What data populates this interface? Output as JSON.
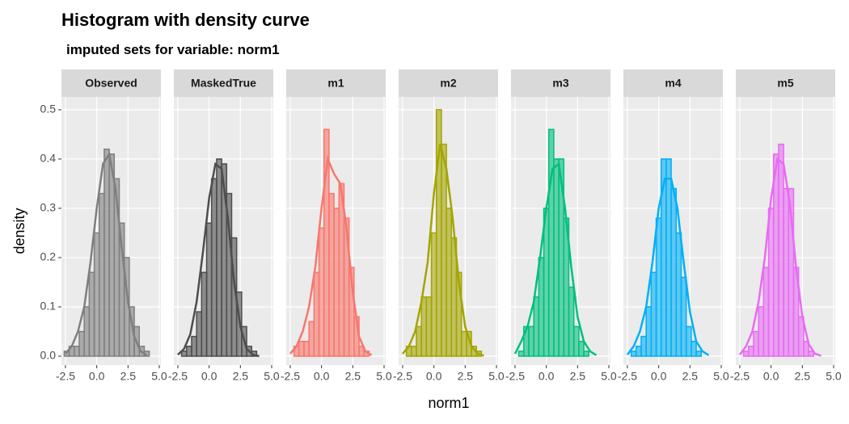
{
  "title": "Histogram with density curve",
  "subtitle": "imputed sets for variable:  norm1",
  "x_label": "norm1",
  "y_label": "density",
  "chart_data": [
    {
      "type": "histogram",
      "title": "Observed",
      "color": "#7f7f7f",
      "bins": [
        -2.6,
        -2.2,
        -1.8,
        -1.4,
        -1.0,
        -0.6,
        -0.2,
        0.2,
        0.6,
        1.0,
        1.4,
        1.8,
        2.2,
        2.6,
        3.0,
        3.4,
        3.8,
        4.2
      ],
      "values": [
        0.01,
        0.02,
        0.02,
        0.05,
        0.1,
        0.17,
        0.25,
        0.33,
        0.42,
        0.41,
        0.36,
        0.27,
        0.2,
        0.1,
        0.06,
        0.02,
        0.01
      ],
      "density": {
        "x": [
          -2.5,
          -2.0,
          -1.5,
          -1.0,
          -0.5,
          0.0,
          0.5,
          1.0,
          1.5,
          2.0,
          2.5,
          3.0,
          3.5,
          4.0
        ],
        "y": [
          0.005,
          0.02,
          0.05,
          0.1,
          0.19,
          0.3,
          0.39,
          0.41,
          0.34,
          0.22,
          0.11,
          0.04,
          0.01,
          0.002
        ]
      },
      "xlim": [
        -2.82,
        5.13
      ],
      "ylim": [
        -0.018,
        0.526
      ],
      "xticks": [
        -2.5,
        {
          "value": 0,
          "label": "0.0"
        },
        2.5,
        {
          "value": 5,
          "label": "5.0"
        }
      ],
      "yticks": [
        {
          "value": 0,
          "label": "0.0"
        },
        0.1,
        0.2,
        0.3,
        0.4,
        0.5
      ],
      "grid": true
    },
    {
      "type": "histogram",
      "title": "MaskedTrue",
      "color": "#4d4d4d",
      "bins": [
        -2.6,
        -2.2,
        -1.8,
        -1.4,
        -1.0,
        -0.6,
        -0.2,
        0.2,
        0.6,
        1.0,
        1.4,
        1.8,
        2.2,
        2.6,
        3.0,
        3.4,
        3.8,
        4.2
      ],
      "values": [
        0.0,
        0.01,
        0.02,
        0.04,
        0.09,
        0.17,
        0.27,
        0.36,
        0.4,
        0.39,
        0.33,
        0.24,
        0.13,
        0.06,
        0.02,
        0.01,
        0.0
      ],
      "density": {
        "x": [
          -2.5,
          -2.0,
          -1.5,
          -1.0,
          -0.5,
          0.0,
          0.5,
          1.0,
          1.5,
          2.0,
          2.5,
          3.0,
          3.5,
          4.0
        ],
        "y": [
          0.003,
          0.015,
          0.045,
          0.11,
          0.21,
          0.32,
          0.39,
          0.38,
          0.28,
          0.15,
          0.06,
          0.015,
          0.003,
          0.0
        ]
      },
      "xlim": [
        -2.82,
        5.13
      ],
      "ylim": [
        -0.018,
        0.526
      ],
      "xticks": [
        -2.5,
        {
          "value": 0,
          "label": "0.0"
        },
        2.5,
        {
          "value": 5,
          "label": "5.0"
        }
      ],
      "yticks": [
        {
          "value": 0,
          "label": "0.0"
        },
        0.1,
        0.2,
        0.3,
        0.4,
        0.5
      ],
      "grid": true
    },
    {
      "type": "histogram",
      "title": "m1",
      "color": "#F8766D",
      "bins": [
        -2.6,
        -2.2,
        -1.8,
        -1.4,
        -1.0,
        -0.6,
        -0.2,
        0.2,
        0.6,
        1.0,
        1.4,
        1.8,
        2.2,
        2.6,
        3.0,
        3.4,
        3.8,
        4.2
      ],
      "values": [
        0.0,
        0.02,
        0.03,
        0.03,
        0.07,
        0.17,
        0.26,
        0.46,
        0.33,
        0.3,
        0.35,
        0.28,
        0.18,
        0.08,
        0.02,
        0.01,
        0.0
      ],
      "density": {
        "x": [
          -2.5,
          -2.0,
          -1.5,
          -1.0,
          -0.5,
          0.0,
          0.5,
          1.0,
          1.5,
          2.0,
          2.5,
          3.0,
          3.5,
          4.0
        ],
        "y": [
          0.005,
          0.02,
          0.05,
          0.1,
          0.18,
          0.3,
          0.4,
          0.37,
          0.35,
          0.26,
          0.13,
          0.04,
          0.01,
          0.002
        ]
      },
      "xlim": [
        -2.82,
        5.13
      ],
      "ylim": [
        -0.018,
        0.526
      ],
      "xticks": [
        -2.5,
        {
          "value": 0,
          "label": "0.0"
        },
        2.5,
        {
          "value": 5,
          "label": "5.0"
        }
      ],
      "yticks": [
        {
          "value": 0,
          "label": "0.0"
        },
        0.1,
        0.2,
        0.3,
        0.4,
        0.5
      ],
      "grid": true
    },
    {
      "type": "histogram",
      "title": "m2",
      "color": "#A3A500",
      "bins": [
        -2.6,
        -2.2,
        -1.8,
        -1.4,
        -1.0,
        -0.6,
        -0.2,
        0.2,
        0.6,
        1.0,
        1.4,
        1.8,
        2.2,
        2.6,
        3.0,
        3.4,
        3.8,
        4.2
      ],
      "values": [
        0.0,
        0.02,
        0.02,
        0.06,
        0.12,
        0.12,
        0.25,
        0.5,
        0.43,
        0.3,
        0.24,
        0.17,
        0.05,
        0.05,
        0.02,
        0.01,
        0.0
      ],
      "density": {
        "x": [
          -2.5,
          -2.0,
          -1.5,
          -1.0,
          -0.5,
          0.0,
          0.5,
          1.0,
          1.5,
          2.0,
          2.5,
          3.0,
          3.5,
          4.0
        ],
        "y": [
          0.005,
          0.02,
          0.05,
          0.11,
          0.19,
          0.33,
          0.43,
          0.38,
          0.28,
          0.15,
          0.06,
          0.02,
          0.005,
          0.001
        ]
      },
      "xlim": [
        -2.82,
        5.13
      ],
      "ylim": [
        -0.018,
        0.526
      ],
      "xticks": [
        -2.5,
        {
          "value": 0,
          "label": "0.0"
        },
        2.5,
        {
          "value": 5,
          "label": "5.0"
        }
      ],
      "yticks": [
        {
          "value": 0,
          "label": "0.0"
        },
        0.1,
        0.2,
        0.3,
        0.4,
        0.5
      ],
      "grid": true
    },
    {
      "type": "histogram",
      "title": "m3",
      "color": "#00BF7D",
      "bins": [
        -2.6,
        -2.2,
        -1.8,
        -1.4,
        -1.0,
        -0.6,
        -0.2,
        0.2,
        0.6,
        1.0,
        1.4,
        1.8,
        2.2,
        2.6,
        3.0,
        3.4,
        3.8,
        4.2
      ],
      "values": [
        0.0,
        0.01,
        0.06,
        0.06,
        0.12,
        0.2,
        0.3,
        0.46,
        0.4,
        0.4,
        0.28,
        0.14,
        0.06,
        0.03,
        0.01,
        0.0,
        0.0
      ],
      "density": {
        "x": [
          -2.5,
          -2.0,
          -1.5,
          -1.0,
          -0.5,
          0.0,
          0.5,
          1.0,
          1.5,
          2.0,
          2.5,
          3.0,
          3.5,
          4.0
        ],
        "y": [
          0.005,
          0.03,
          0.06,
          0.11,
          0.2,
          0.3,
          0.38,
          0.39,
          0.3,
          0.18,
          0.08,
          0.03,
          0.01,
          0.002
        ]
      },
      "xlim": [
        -2.82,
        5.13
      ],
      "ylim": [
        -0.018,
        0.526
      ],
      "xticks": [
        -2.5,
        {
          "value": 0,
          "label": "0.0"
        },
        2.5,
        {
          "value": 5,
          "label": "5.0"
        }
      ],
      "yticks": [
        {
          "value": 0,
          "label": "0.0"
        },
        0.1,
        0.2,
        0.3,
        0.4,
        0.5
      ],
      "grid": true
    },
    {
      "type": "histogram",
      "title": "m4",
      "color": "#00B0F6",
      "bins": [
        -2.6,
        -2.2,
        -1.8,
        -1.4,
        -1.0,
        -0.6,
        -0.2,
        0.2,
        0.6,
        1.0,
        1.4,
        1.8,
        2.2,
        2.6,
        3.0,
        3.4,
        3.8,
        4.2
      ],
      "values": [
        0.0,
        0.01,
        0.02,
        0.04,
        0.1,
        0.17,
        0.28,
        0.4,
        0.4,
        0.34,
        0.25,
        0.16,
        0.06,
        0.03,
        0.01,
        0.0,
        0.0
      ],
      "density": {
        "x": [
          -2.5,
          -2.0,
          -1.5,
          -1.0,
          -0.5,
          0.0,
          0.5,
          1.0,
          1.5,
          2.0,
          2.5,
          3.0,
          3.5,
          4.0
        ],
        "y": [
          0.003,
          0.02,
          0.05,
          0.1,
          0.19,
          0.3,
          0.36,
          0.36,
          0.3,
          0.19,
          0.09,
          0.03,
          0.01,
          0.002
        ]
      },
      "xlim": [
        -2.82,
        5.13
      ],
      "ylim": [
        -0.018,
        0.526
      ],
      "xticks": [
        -2.5,
        {
          "value": 0,
          "label": "0.0"
        },
        2.5,
        {
          "value": 5,
          "label": "5.0"
        }
      ],
      "yticks": [
        {
          "value": 0,
          "label": "0.0"
        },
        0.1,
        0.2,
        0.3,
        0.4,
        0.5
      ],
      "grid": true
    },
    {
      "type": "histogram",
      "title": "m5",
      "color": "#E76BF3",
      "bins": [
        -2.6,
        -2.2,
        -1.8,
        -1.4,
        -1.0,
        -0.6,
        -0.2,
        0.2,
        0.6,
        1.0,
        1.4,
        1.8,
        2.2,
        2.6,
        3.0,
        3.4,
        3.8,
        4.2
      ],
      "values": [
        0.0,
        0.01,
        0.02,
        0.05,
        0.1,
        0.18,
        0.3,
        0.41,
        0.43,
        0.34,
        0.34,
        0.18,
        0.08,
        0.03,
        0.01,
        0.0,
        0.0
      ],
      "density": {
        "x": [
          -2.5,
          -2.0,
          -1.5,
          -1.0,
          -0.5,
          0.0,
          0.5,
          1.0,
          1.5,
          2.0,
          2.5,
          3.0,
          3.5,
          4.0
        ],
        "y": [
          0.003,
          0.02,
          0.05,
          0.11,
          0.2,
          0.32,
          0.4,
          0.39,
          0.31,
          0.18,
          0.08,
          0.025,
          0.005,
          0.001
        ]
      },
      "xlim": [
        -2.82,
        5.13
      ],
      "ylim": [
        -0.018,
        0.526
      ],
      "xticks": [
        -2.5,
        {
          "value": 0,
          "label": "0.0"
        },
        2.5,
        {
          "value": 5,
          "label": "5.0"
        }
      ],
      "yticks": [
        {
          "value": 0,
          "label": "0.0"
        },
        0.1,
        0.2,
        0.3,
        0.4,
        0.5
      ],
      "grid": true
    }
  ]
}
